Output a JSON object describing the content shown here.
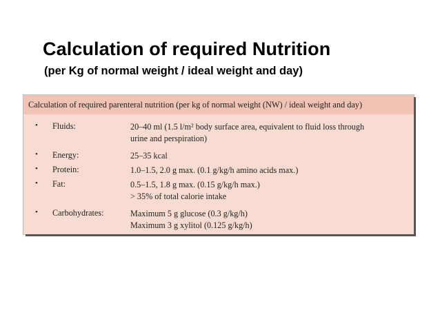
{
  "slide": {
    "title": "Calculation of required Nutrition",
    "subtitle": "(per Kg of normal weight / ideal weight and day)"
  },
  "table": {
    "header": "Calculation of required parenteral nutrition (per kg of normal weight (NW) / ideal weight and day)",
    "bullet_symbol": "•",
    "rows": [
      {
        "label": "Fluids:",
        "lines": [
          "20–40 ml (1.5 l/m² body surface area, equivalent to fluid loss through",
          "urine and perspiration)"
        ]
      },
      {
        "label": "Energy:",
        "lines": [
          "25–35 kcal"
        ]
      },
      {
        "label": "Protein:",
        "lines": [
          "1.0–1.5, 2.0 g max. (0.1 g/kg/h amino acids max.)"
        ]
      },
      {
        "label": "Fat:",
        "lines": [
          "0.5–1.5, 1.8 g max. (0.15 g/kg/h max.)",
          "> 35% of total calorie intake"
        ]
      },
      {
        "label": "Carbohydrates:",
        "lines": [
          "Maximum 5 g glucose (0.3 g/kg/h)",
          "Maximum 3 g xylitol (0.125 g/kg/h)"
        ]
      }
    ]
  },
  "colors": {
    "table_background": "#f8dbd1",
    "table_header_background": "#f1c3b4",
    "text": "#222222"
  }
}
